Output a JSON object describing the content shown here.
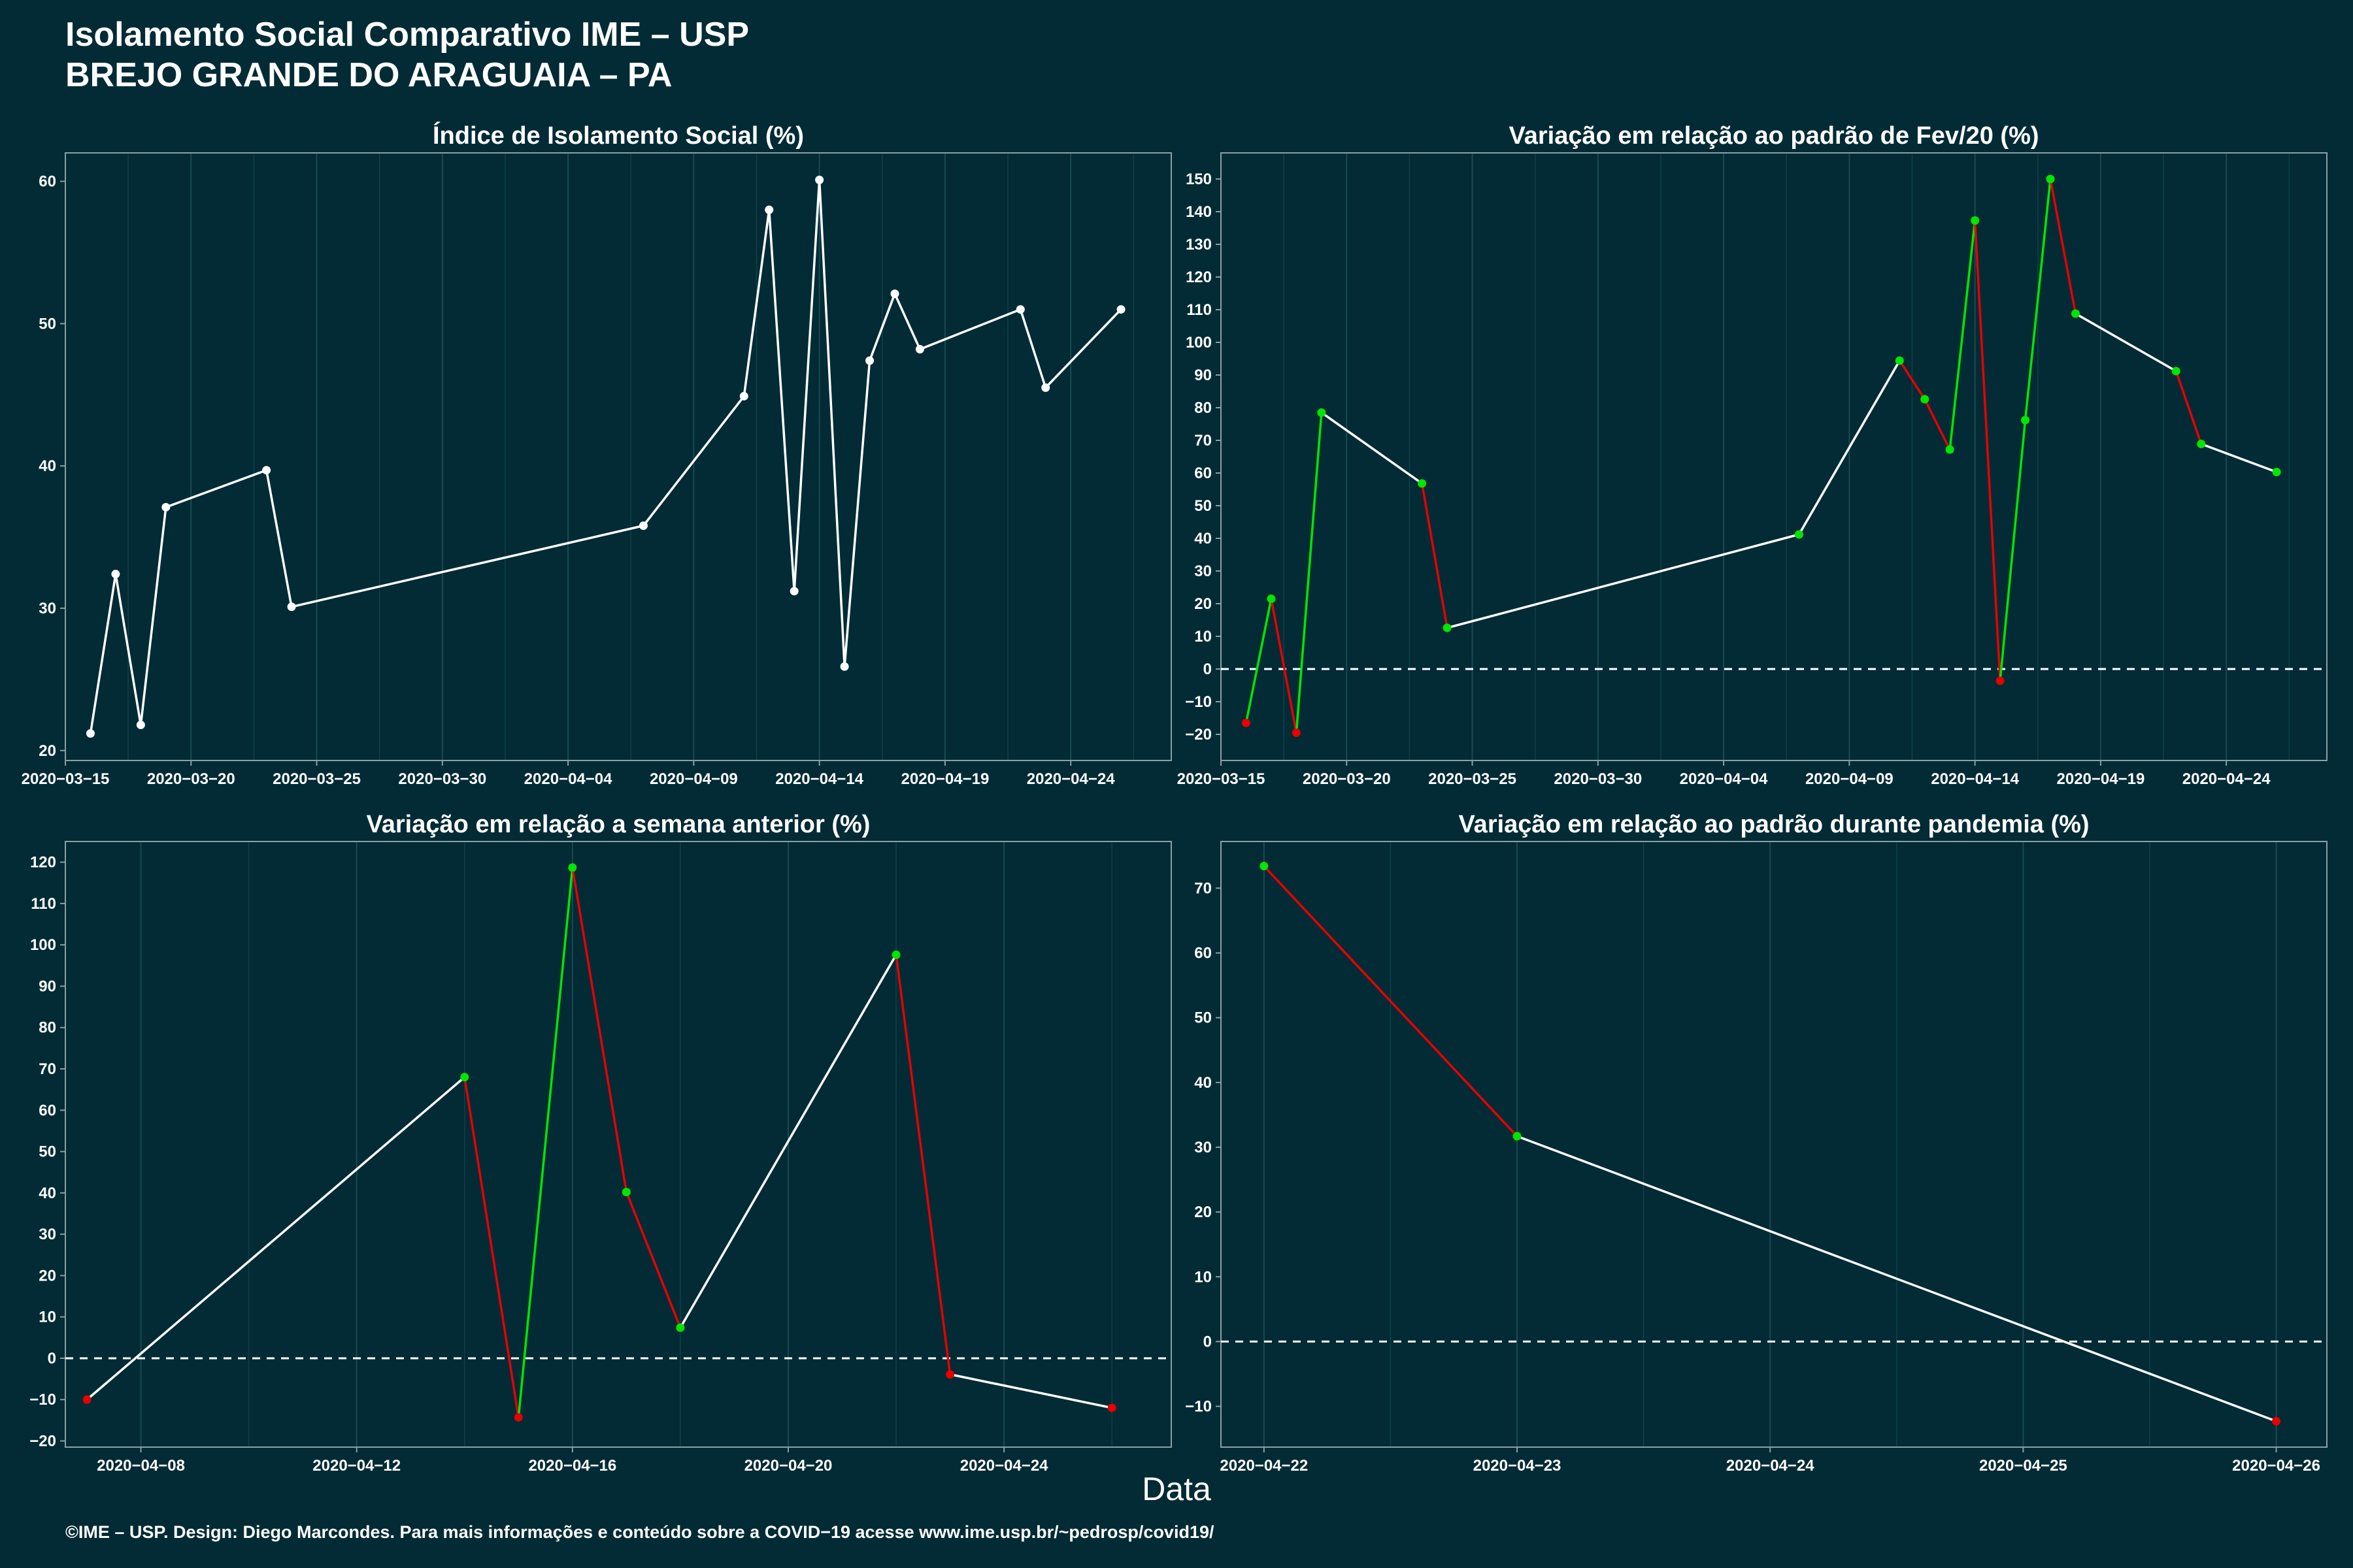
{
  "header": {
    "title_line1": "Isolamento Social Comparativo IME – USP",
    "title_line2": "BREJO GRANDE DO ARAGUAIA – PA"
  },
  "x_axis_common_label": "Data",
  "footer": "©IME – USP. Design: Diego Marcondes. Para mais informações e conteúdo sobre a COVID−19 acesse www.ime.usp.br/~pedrosp/covid19/",
  "colors": {
    "background": "#022b35",
    "line_default": "#ffffff",
    "increase": "#00e600",
    "decrease": "#e60000",
    "zero_line": "#ffffff"
  },
  "chart_data": [
    {
      "type": "line",
      "title": "Índice de Isolamento Social (%)",
      "x_type": "date",
      "xlim": [
        "2020-03-15",
        "2020-04-28"
      ],
      "x_ticks": [
        "2020-03-15",
        "2020-03-20",
        "2020-03-25",
        "2020-03-30",
        "2020-04-04",
        "2020-04-09",
        "2020-04-14",
        "2020-04-19",
        "2020-04-24"
      ],
      "x_tick_labels": [
        "2020−03−15",
        "2020−03−20",
        "2020−03−25",
        "2020−03−30",
        "2020−04−04",
        "2020−04−09",
        "2020−04−14",
        "2020−04−19",
        "2020−04−24"
      ],
      "ylim": [
        19.3,
        62
      ],
      "y_ticks": [
        20,
        30,
        40,
        50,
        60
      ],
      "y_tick_labels": [
        "20",
        "30",
        "40",
        "50",
        "60"
      ],
      "zero_line": false,
      "color_by_change": false,
      "x": [
        "2020-03-16",
        "2020-03-17",
        "2020-03-18",
        "2020-03-19",
        "2020-03-23",
        "2020-03-24",
        "2020-04-07",
        "2020-04-11",
        "2020-04-12",
        "2020-04-13",
        "2020-04-14",
        "2020-04-15",
        "2020-04-16",
        "2020-04-17",
        "2020-04-18",
        "2020-04-22",
        "2020-04-23",
        "2020-04-26"
      ],
      "values": [
        21.2,
        32.4,
        21.8,
        37.1,
        39.7,
        30.1,
        35.8,
        44.9,
        58.0,
        31.2,
        60.1,
        25.9,
        47.4,
        52.1,
        48.2,
        51.0,
        45.5,
        51.0
      ]
    },
    {
      "type": "line",
      "title": "Variação em relação ao padrão de Fev/20 (%)",
      "x_type": "date",
      "xlim": [
        "2020-03-15",
        "2020-04-28"
      ],
      "x_ticks": [
        "2020-03-15",
        "2020-03-20",
        "2020-03-25",
        "2020-03-30",
        "2020-04-04",
        "2020-04-09",
        "2020-04-14",
        "2020-04-19",
        "2020-04-24"
      ],
      "x_tick_labels": [
        "2020−03−15",
        "2020−03−20",
        "2020−03−25",
        "2020−03−30",
        "2020−04−04",
        "2020−04−09",
        "2020−04−14",
        "2020−04−19",
        "2020−04−24"
      ],
      "ylim": [
        -28,
        158
      ],
      "y_ticks": [
        -20,
        -10,
        0,
        10,
        20,
        30,
        40,
        50,
        60,
        70,
        80,
        90,
        100,
        110,
        120,
        130,
        140,
        150
      ],
      "y_tick_labels": [
        "−20",
        "−10",
        "0",
        "10",
        "20",
        "30",
        "40",
        "50",
        "60",
        "70",
        "80",
        "90",
        "100",
        "110",
        "120",
        "130",
        "140",
        "150"
      ],
      "zero_line": true,
      "color_by_change": true,
      "x": [
        "2020-03-16",
        "2020-03-17",
        "2020-03-18",
        "2020-03-19",
        "2020-03-23",
        "2020-03-24",
        "2020-04-07",
        "2020-04-11",
        "2020-04-12",
        "2020-04-13",
        "2020-04-14",
        "2020-04-15",
        "2020-04-16",
        "2020-04-17",
        "2020-04-18",
        "2020-04-22",
        "2020-04-23",
        "2020-04-26"
      ],
      "values": [
        -16.5,
        21.5,
        -19.5,
        78.5,
        56.8,
        12.6,
        41.2,
        94.4,
        82.6,
        67.2,
        137.3,
        -3.6,
        76.2,
        150.0,
        108.8,
        91.2,
        68.9,
        60.3
      ]
    },
    {
      "type": "line",
      "title": "Variação em relação a semana anterior (%)",
      "x_type": "date",
      "xlim": [
        "2020-04-06.6",
        "2020-04-27.1"
      ],
      "x_ticks": [
        "2020-04-08",
        "2020-04-12",
        "2020-04-16",
        "2020-04-20",
        "2020-04-24"
      ],
      "x_tick_labels": [
        "2020−04−08",
        "2020−04−12",
        "2020−04−16",
        "2020−04−20",
        "2020−04−24"
      ],
      "ylim": [
        -21.5,
        125
      ],
      "y_ticks": [
        -20,
        -10,
        0,
        10,
        20,
        30,
        40,
        50,
        60,
        70,
        80,
        90,
        100,
        110,
        120
      ],
      "y_tick_labels": [
        "−20",
        "−10",
        "0",
        "10",
        "20",
        "30",
        "40",
        "50",
        "60",
        "70",
        "80",
        "90",
        "100",
        "110",
        "120"
      ],
      "zero_line": true,
      "color_by_change": true,
      "x": [
        "2020-04-07",
        "2020-04-14",
        "2020-04-15",
        "2020-04-16",
        "2020-04-17",
        "2020-04-18",
        "2020-04-22",
        "2020-04-23",
        "2020-04-26"
      ],
      "values": [
        -10.0,
        68.0,
        -14.3,
        118.7,
        40.2,
        7.4,
        97.6,
        -3.9,
        -12.0
      ]
    },
    {
      "type": "line",
      "title": "Variação em relação ao padrão durante pandemia (%)",
      "x_type": "date",
      "xlim": [
        "2020-04-21.83",
        "2020-04-26.2"
      ],
      "x_ticks": [
        "2020-04-22",
        "2020-04-23",
        "2020-04-24",
        "2020-04-25",
        "2020-04-26"
      ],
      "x_tick_labels": [
        "2020−04−22",
        "2020−04−23",
        "2020−04−24",
        "2020−04−25",
        "2020−04−26"
      ],
      "ylim": [
        -16.3,
        77.2
      ],
      "y_ticks": [
        -10,
        0,
        10,
        20,
        30,
        40,
        50,
        60,
        70
      ],
      "y_tick_labels": [
        "−10",
        "0",
        "10",
        "20",
        "30",
        "40",
        "50",
        "60",
        "70"
      ],
      "zero_line": true,
      "color_by_change": true,
      "x": [
        "2020-04-22",
        "2020-04-23",
        "2020-04-26"
      ],
      "values": [
        73.4,
        31.7,
        -12.3
      ]
    }
  ]
}
